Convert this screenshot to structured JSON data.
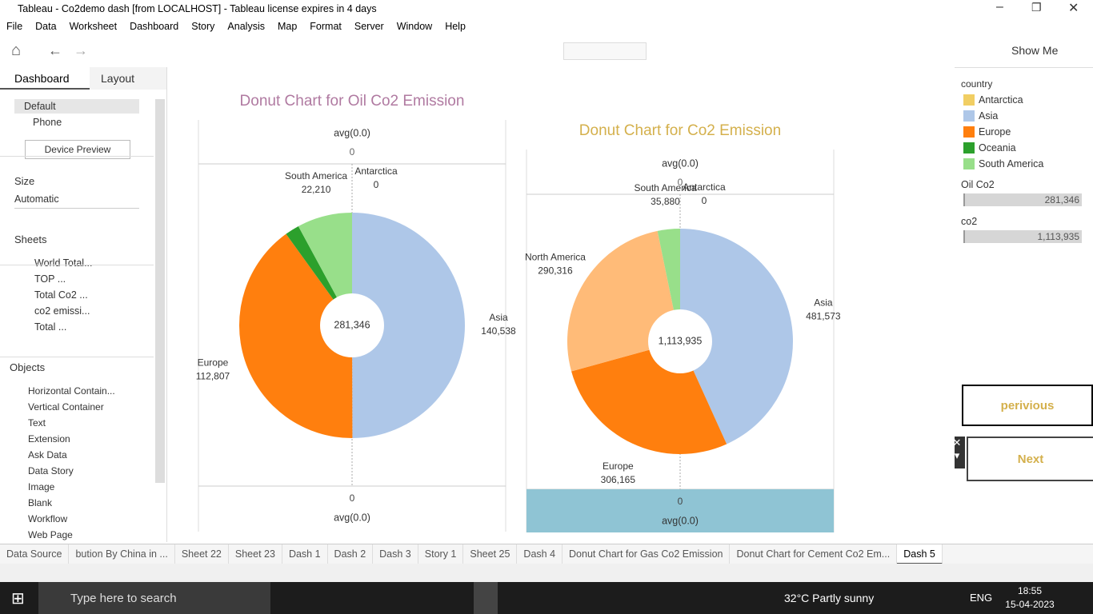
{
  "window": {
    "title": "Tableau - Co2demo dash [from LOCALHOST] - Tableau license expires in 4 days"
  },
  "menu": [
    "File",
    "Data",
    "Worksheet",
    "Dashboard",
    "Story",
    "Analysis",
    "Map",
    "Format",
    "Server",
    "Window",
    "Help"
  ],
  "toolbar": {
    "show_me": "Show Me"
  },
  "left_panel": {
    "tabs": [
      "Dashboard",
      "Layout"
    ],
    "devices": [
      "Default",
      "Phone"
    ],
    "device_preview": "Device Preview",
    "size_title": "Size",
    "size_value": "Automatic",
    "sheets_title": "Sheets",
    "sheets": [
      "World Total...",
      "TOP ...",
      "Total Co2 ...",
      "co2 emissi...",
      "Total ..."
    ],
    "objects_title": "Objects",
    "objects": [
      "Horizontal Contain...",
      "Vertical Container",
      "Text",
      "Extension",
      "Ask Data",
      "Data Story",
      "Image",
      "Blank",
      "Workflow",
      "Web Page"
    ]
  },
  "chart_data": [
    {
      "type": "pie",
      "title": "Donut Chart for Oil Co2 Emission",
      "title_color": "#b07aa1",
      "categories": [
        "Antarctica",
        "Asia",
        "Europe",
        "Oceania",
        "South America"
      ],
      "values": [
        0,
        140538,
        112807,
        5791,
        22210
      ],
      "value_labels": [
        "0",
        "140,538",
        "112,807",
        null,
        "22,210"
      ],
      "colors": [
        "#f1ce63",
        "#aec7e8",
        "#ff7f0e",
        "#2ca02c",
        "#98df8a"
      ],
      "total": {
        "value": 281346,
        "label": "281,346"
      },
      "axis_title": "avg(0.0)",
      "axis_value": 0
    },
    {
      "type": "pie",
      "title": "Donut Chart for Co2 Emission",
      "title_color": "#d4b04c",
      "categories": [
        "Antarctica",
        "Asia",
        "Europe",
        "North America",
        "South America"
      ],
      "values": [
        0,
        481573,
        306165,
        290316,
        35880
      ],
      "value_labels": [
        "0",
        "481,573",
        "306,165",
        "290,316",
        "35,880"
      ],
      "colors": [
        "#f1ce63",
        "#aec7e8",
        "#ff7f0e",
        "#ffbb78",
        "#98df8a"
      ],
      "total": {
        "value": 1113935,
        "label": "1,113,935"
      },
      "axis_title": "avg(0.0)",
      "axis_value": 0
    }
  ],
  "legend": {
    "title": "country",
    "filters": [
      {
        "name": "Oil Co2",
        "value": "281,346"
      },
      {
        "name": "co2",
        "value": "1,113,935"
      }
    ]
  },
  "buttons": [
    "perivious",
    "Next"
  ],
  "tabs": [
    "Data Source",
    "bution By China in ...",
    "Sheet 22",
    "Sheet 23",
    "Dash 1",
    "Dash 2",
    "Dash 3",
    "Story 1",
    "Sheet 25",
    "Dash 4",
    "Donut Chart for Gas Co2 Emission",
    "Donut Chart for Cement Co2 Em...",
    "Dash 5"
  ],
  "taskbar": {
    "search": "Type here to search",
    "weather": "32°C  Partly sunny",
    "lang": "ENG",
    "time": "18:55",
    "date": "15-04-2023"
  }
}
